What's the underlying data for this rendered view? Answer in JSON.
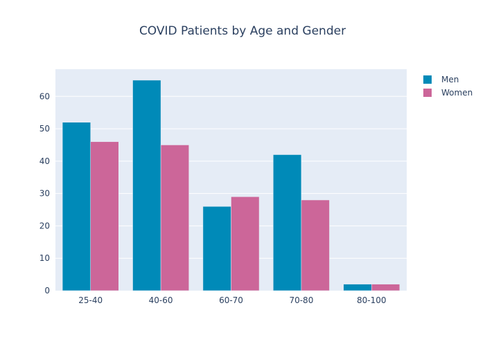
{
  "chart_data": {
    "type": "bar",
    "title": "COVID Patients by Age and Gender",
    "xlabel": "",
    "ylabel": "",
    "categories": [
      "25-40",
      "40-60",
      "60-70",
      "70-80",
      "80-100"
    ],
    "series": [
      {
        "name": "Men",
        "values": [
          52,
          65,
          26,
          42,
          2
        ],
        "color": "#008ab8"
      },
      {
        "name": "Women",
        "values": [
          46,
          45,
          29,
          28,
          2
        ],
        "color": "#cc6699"
      }
    ],
    "ylim": [
      0,
      68.4
    ],
    "yticks": [
      0,
      10,
      20,
      30,
      40,
      50,
      60
    ],
    "grid": true,
    "legend": "top-right",
    "colors": {
      "plot_bg": "#e5ecf6",
      "grid": "#ffffff",
      "text": "#2a3f5f"
    }
  }
}
